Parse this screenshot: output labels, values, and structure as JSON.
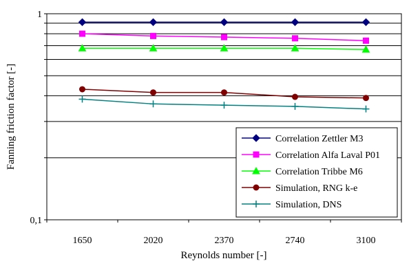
{
  "chart_data": {
    "type": "line",
    "title": "",
    "xlabel": "Reynolds number [-]",
    "ylabel": "Fanning friction factor [-]",
    "y_scale": "log",
    "ylim": [
      0.1,
      1
    ],
    "categories": [
      "1650",
      "2020",
      "2370",
      "2740",
      "3100"
    ],
    "y_ticks": [
      {
        "value": 1,
        "label": "1"
      },
      {
        "value": 0.1,
        "label": "0,1"
      }
    ],
    "grid": "horizontal",
    "legend_position": "bottom-right",
    "series": [
      {
        "name": "Correlation Zettler M3",
        "color": "#000080",
        "marker": "diamond",
        "values": [
          0.91,
          0.91,
          0.91,
          0.91,
          0.91
        ]
      },
      {
        "name": "Correlation Alfa Laval P01",
        "color": "#FF00FF",
        "marker": "square",
        "values": [
          0.8,
          0.78,
          0.77,
          0.76,
          0.74
        ]
      },
      {
        "name": "Correlation Tribbe M6",
        "color": "#00FF00",
        "marker": "triangle",
        "values": [
          0.68,
          0.68,
          0.68,
          0.68,
          0.67
        ]
      },
      {
        "name": "Simulation, RNG k-e",
        "color": "#800000",
        "marker": "circle",
        "values": [
          0.43,
          0.415,
          0.415,
          0.395,
          0.39
        ]
      },
      {
        "name": "Simulation, DNS",
        "color": "#008080",
        "marker": "plus",
        "values": [
          0.385,
          0.365,
          0.36,
          0.355,
          0.345
        ]
      }
    ]
  }
}
